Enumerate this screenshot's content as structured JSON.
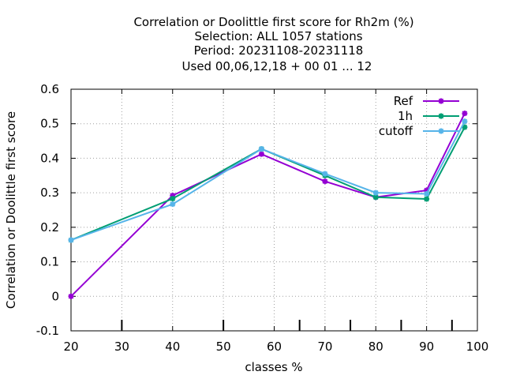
{
  "chart_data": {
    "type": "line",
    "title_lines": [
      "Correlation or Doolittle first score  for Rh2m (%)",
      "Selection: ALL   1057 stations",
      "Period: 20231108-20231118",
      "Used  00,06,12,18 + 00 01 ... 12"
    ],
    "xlabel": "classes %",
    "ylabel": "Correlation or Doolittle first score",
    "xlim": [
      20,
      100
    ],
    "ylim": [
      -0.1,
      0.6
    ],
    "x_ticks": [
      "20",
      "30",
      "40",
      "50",
      "60",
      "70",
      "80",
      "90",
      "100"
    ],
    "y_ticks": [
      "-0.1",
      "0",
      "0.1",
      "0.2",
      "0.3",
      "0.4",
      "0.5",
      "0.6"
    ],
    "extra_x_ticks": [
      30,
      50,
      65,
      75,
      85,
      95
    ],
    "grid": true,
    "legend_position": "top-right",
    "series": [
      {
        "name": "Ref",
        "color": "#9400d3",
        "x": [
          20,
          40,
          57.5,
          70,
          80,
          90,
          97.5
        ],
        "y": [
          0.0,
          0.292,
          0.412,
          0.333,
          0.287,
          0.307,
          0.53
        ]
      },
      {
        "name": "1h",
        "color": "#009e73",
        "x": [
          20,
          40,
          57.5,
          70,
          80,
          90,
          97.5
        ],
        "y": [
          0.163,
          0.283,
          0.427,
          0.35,
          0.287,
          0.282,
          0.49
        ]
      },
      {
        "name": "cutoff",
        "color": "#56b4e9",
        "x": [
          20,
          40,
          57.5,
          70,
          80,
          90,
          97.5
        ],
        "y": [
          0.163,
          0.267,
          0.427,
          0.355,
          0.3,
          0.297,
          0.507
        ]
      }
    ]
  }
}
